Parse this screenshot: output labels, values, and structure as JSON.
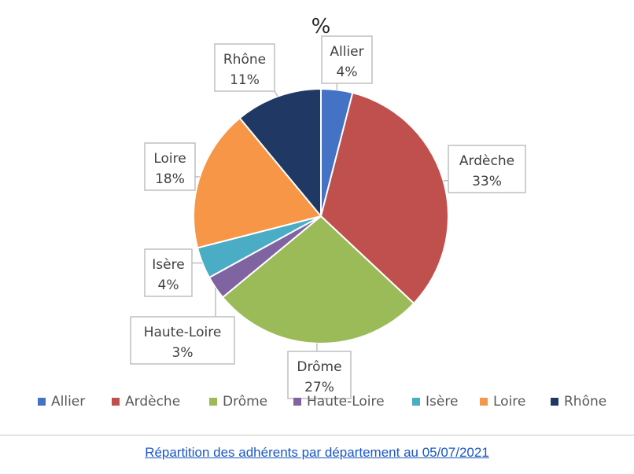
{
  "chart_data": {
    "type": "pie",
    "title": "%",
    "categories": [
      "Allier",
      "Ardèche",
      "Drôme",
      "Haute-Loire",
      "Isère",
      "Loire",
      "Rhône"
    ],
    "values": [
      4,
      33,
      27,
      3,
      4,
      18,
      11
    ],
    "value_labels": [
      "4%",
      "33%",
      "27%",
      "3%",
      "4%",
      "18%",
      "11%"
    ],
    "colors": [
      "#4472c4",
      "#c0504d",
      "#9bbb59",
      "#8064a2",
      "#4bacc6",
      "#f79646",
      "#1f3864"
    ],
    "legend": [
      "Allier",
      "Ardèche",
      "Drôme",
      "Haute-Loire",
      "Isère",
      "Loire",
      "Rhône"
    ],
    "legend_position": "bottom",
    "start_angle": "top, clockwise"
  },
  "caption": {
    "text": "Répartition des adhérents par département au 05/07/2021"
  }
}
